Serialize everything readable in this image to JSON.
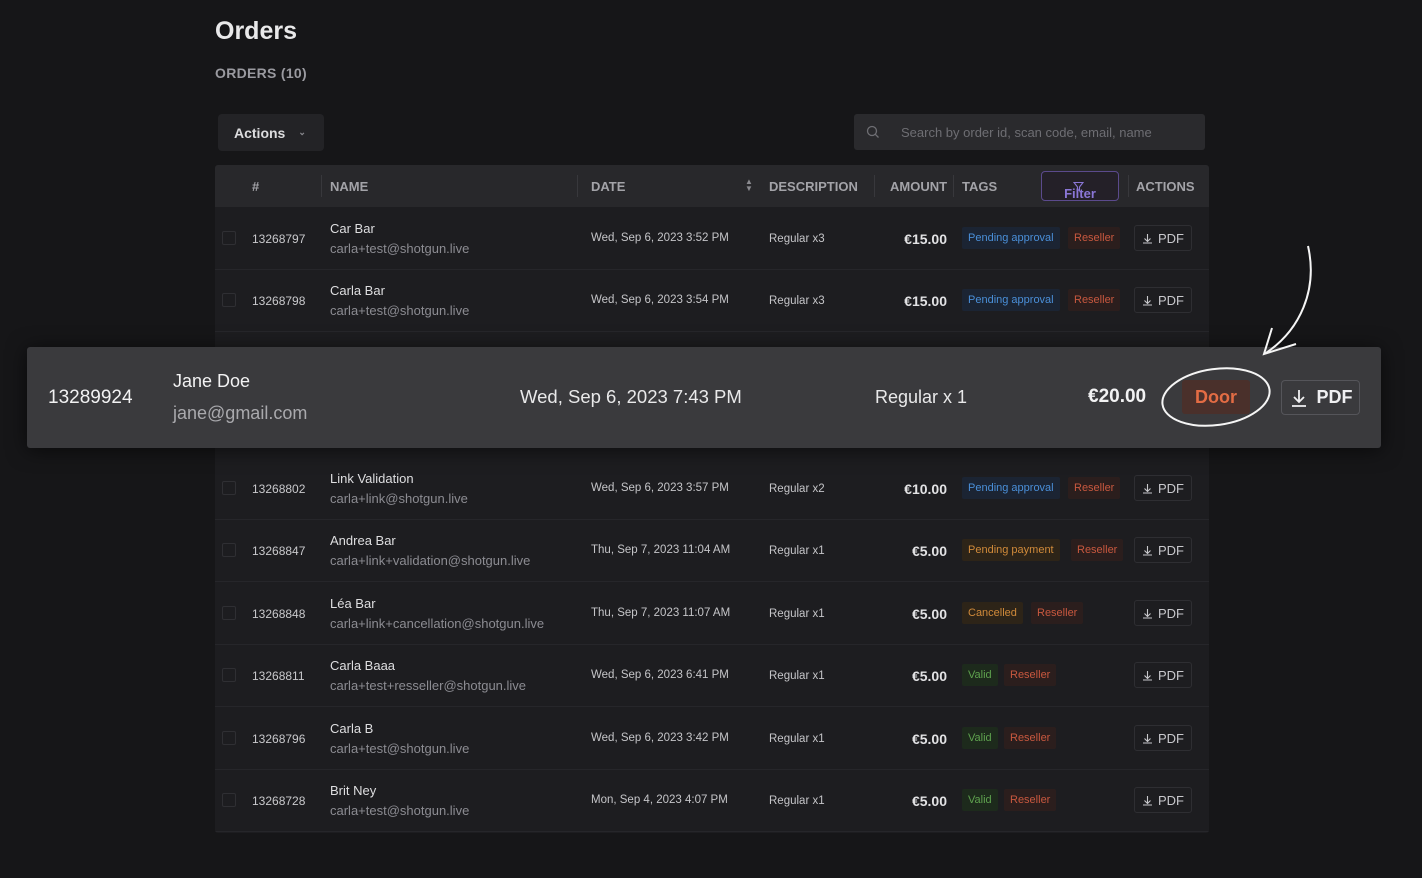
{
  "header": {
    "title": "Orders",
    "count_label": "ORDERS (10)"
  },
  "toolbar": {
    "actions_label": "Actions",
    "search_placeholder": "Search by order id, scan code, email, name"
  },
  "table": {
    "columns": {
      "num": "#",
      "name": "NAME",
      "date": "DATE",
      "description": "DESCRIPTION",
      "amount": "AMOUNT",
      "tags": "TAGS",
      "filter": "Filter",
      "actions": "ACTIONS"
    },
    "pdf_label": "PDF",
    "rows": [
      {
        "id": "13268797",
        "name": "Car Bar",
        "email": "carla+test@shotgun.live",
        "date": "Wed, Sep 6, 2023 3:52 PM",
        "description": "Regular x3",
        "amount": "€15.00",
        "status": "Pending approval",
        "status_color": "blue",
        "tag2": "Reseller"
      },
      {
        "id": "13268798",
        "name": "Carla Bar",
        "email": "carla+test@shotgun.live",
        "date": "Wed, Sep 6, 2023 3:54 PM",
        "description": "Regular x3",
        "amount": "€15.00",
        "status": "Pending approval",
        "status_color": "blue",
        "tag2": "Reseller"
      },
      {
        "id": "13268802",
        "name": "Link Validation",
        "email": "carla+link@shotgun.live",
        "date": "Wed, Sep 6, 2023 3:57 PM",
        "description": "Regular x2",
        "amount": "€10.00",
        "status": "Pending approval",
        "status_color": "blue",
        "tag2": "Reseller"
      },
      {
        "id": "13268847",
        "name": "Andrea Bar",
        "email": "carla+link+validation@shotgun.live",
        "date": "Thu, Sep 7, 2023 11:04 AM",
        "description": "Regular x1",
        "amount": "€5.00",
        "status": "Pending payment",
        "status_color": "orange",
        "tag2": "Reseller"
      },
      {
        "id": "13268848",
        "name": "Léa Bar",
        "email": "carla+link+cancellation@shotgun.live",
        "date": "Thu, Sep 7, 2023 11:07 AM",
        "description": "Regular x1",
        "amount": "€5.00",
        "status": "Cancelled",
        "status_color": "orange",
        "tag2": "Reseller"
      },
      {
        "id": "13268811",
        "name": "Carla Baaa",
        "email": "carla+test+resseller@shotgun.live",
        "date": "Wed, Sep 6, 2023 6:41 PM",
        "description": "Regular x1",
        "amount": "€5.00",
        "status": "Valid",
        "status_color": "green",
        "tag2": "Reseller"
      },
      {
        "id": "13268796",
        "name": "Carla B",
        "email": "carla+test@shotgun.live",
        "date": "Wed, Sep 6, 2023 3:42 PM",
        "description": "Regular x1",
        "amount": "€5.00",
        "status": "Valid",
        "status_color": "green",
        "tag2": "Reseller"
      },
      {
        "id": "13268728",
        "name": "Brit Ney",
        "email": "carla+test@shotgun.live",
        "date": "Mon, Sep 4, 2023 4:07 PM",
        "description": "Regular x1",
        "amount": "€5.00",
        "status": "Valid",
        "status_color": "green",
        "tag2": "Reseller"
      }
    ]
  },
  "highlight": {
    "id": "13289924",
    "name": "Jane Doe",
    "email": "jane@gmail.com",
    "date": "Wed, Sep 6, 2023 7:43 PM",
    "description": "Regular x 1",
    "amount": "€20.00",
    "tag": "Door",
    "pdf_label": "PDF"
  },
  "colors": {
    "accent_purple": "#8a76d6",
    "door": "#e36c44",
    "reseller": "#c8583f",
    "pending_approval": "#4a8fd8",
    "valid": "#5ea14e"
  }
}
